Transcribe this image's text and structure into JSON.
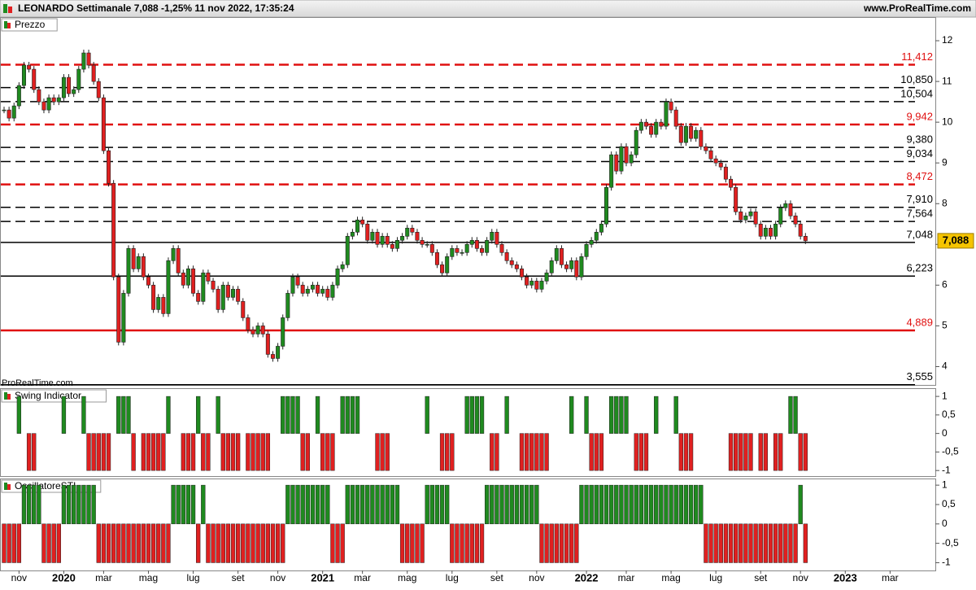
{
  "header": {
    "title": "LEONARDO Settimanale 7,088 -1,25% 11 nov 2022, 17:35:24",
    "site": "www.ProRealTime.com",
    "watermark": "ProRealTime.com"
  },
  "chart_data": [
    {
      "type": "candlestick",
      "title": "Prezzo",
      "values": [
        10.3,
        10.1,
        10.4,
        10.9,
        11.4,
        11.3,
        10.8,
        10.5,
        10.3,
        10.6,
        10.5,
        10.6,
        11.1,
        10.7,
        10.8,
        11.3,
        11.7,
        11.4,
        11.0,
        10.6,
        9.3,
        8.5,
        6.2,
        4.6,
        5.8,
        6.9,
        6.4,
        6.7,
        6.2,
        6.0,
        5.4,
        5.7,
        5.3,
        6.6,
        6.9,
        6.3,
        6.0,
        6.4,
        5.8,
        5.6,
        6.3,
        6.1,
        5.9,
        5.4,
        6.0,
        5.7,
        5.9,
        5.6,
        5.2,
        4.9,
        4.8,
        5.0,
        4.8,
        4.3,
        4.2,
        4.5,
        5.2,
        5.8,
        6.2,
        6.0,
        5.8,
        5.9,
        6.0,
        5.8,
        5.9,
        5.7,
        6.0,
        6.4,
        6.5,
        7.2,
        7.3,
        7.6,
        7.5,
        7.1,
        7.3,
        7.0,
        7.2,
        7.0,
        6.9,
        7.1,
        7.2,
        7.4,
        7.3,
        7.1,
        7.0,
        7.0,
        6.8,
        6.5,
        6.3,
        6.7,
        6.9,
        6.8,
        6.8,
        7.0,
        7.1,
        6.9,
        6.8,
        7.1,
        7.3,
        7.0,
        6.8,
        6.6,
        6.5,
        6.4,
        6.2,
        6.0,
        6.1,
        5.9,
        6.1,
        6.3,
        6.6,
        6.9,
        6.5,
        6.4,
        6.6,
        6.2,
        6.7,
        7.0,
        7.1,
        7.3,
        7.5,
        8.4,
        9.2,
        8.8,
        9.4,
        9.0,
        9.2,
        9.8,
        10.0,
        9.9,
        9.7,
        10.0,
        9.9,
        10.5,
        10.3,
        9.9,
        9.5,
        9.9,
        9.6,
        9.8,
        9.4,
        9.3,
        9.1,
        9.0,
        8.9,
        8.6,
        8.4,
        7.8,
        7.6,
        7.7,
        7.8,
        7.5,
        7.2,
        7.4,
        7.2,
        7.5,
        7.9,
        8.0,
        7.7,
        7.5,
        7.2,
        7.088
      ],
      "up_color": "#1f8a1f",
      "down_color": "#e02020",
      "ylim": [
        3.55,
        12.56
      ],
      "yticks": [
        4,
        5,
        6,
        7,
        8,
        9,
        10,
        11,
        12
      ],
      "levels": [
        {
          "value": 11.412,
          "label": "11,412",
          "color": "#e01010",
          "style": "dashed"
        },
        {
          "value": 10.85,
          "label": "10,850",
          "color": "#000000",
          "style": "dashed"
        },
        {
          "value": 10.504,
          "label": "10,504",
          "color": "#000000",
          "style": "dashed"
        },
        {
          "value": 9.942,
          "label": "9,942",
          "color": "#e01010",
          "style": "dashed"
        },
        {
          "value": 9.38,
          "label": "9,380",
          "color": "#000000",
          "style": "dashed"
        },
        {
          "value": 9.034,
          "label": "9,034",
          "color": "#000000",
          "style": "dashed"
        },
        {
          "value": 8.472,
          "label": "8,472",
          "color": "#e01010",
          "style": "dashed"
        },
        {
          "value": 7.91,
          "label": "7,910",
          "color": "#000000",
          "style": "dashed"
        },
        {
          "value": 7.564,
          "label": "7,564",
          "color": "#000000",
          "style": "dashed"
        },
        {
          "value": 7.048,
          "label": "7,048",
          "color": "#000000",
          "style": "solid"
        },
        {
          "value": 6.223,
          "label": "6,223",
          "color": "#000000",
          "style": "solid"
        },
        {
          "value": 4.889,
          "label": "4,889",
          "color": "#e01010",
          "style": "solid"
        },
        {
          "value": 3.555,
          "label": "3,555",
          "color": "#000000",
          "style": "solid"
        }
      ],
      "last_price": {
        "value": 7.088,
        "label": "7,088"
      }
    },
    {
      "type": "bar",
      "title": "Swing Indicator",
      "up_color": "#1f8a1f",
      "down_color": "#e02020",
      "values": [
        0,
        0,
        0,
        1,
        0,
        -1,
        -1,
        0,
        0,
        0,
        0,
        0,
        1,
        0,
        0,
        0,
        1,
        -1,
        -1,
        -1,
        -1,
        -1,
        0,
        1,
        1,
        1,
        -1,
        0,
        -1,
        -1,
        -1,
        -1,
        -1,
        1,
        0,
        0,
        -1,
        -1,
        -1,
        1,
        -1,
        -1,
        0,
        1,
        -1,
        -1,
        -1,
        -1,
        0,
        -1,
        -1,
        -1,
        -1,
        -1,
        0,
        0,
        1,
        1,
        1,
        1,
        -1,
        -1,
        0,
        1,
        -1,
        -1,
        -1,
        0,
        1,
        1,
        1,
        1,
        0,
        0,
        0,
        -1,
        -1,
        -1,
        0,
        0,
        0,
        0,
        0,
        0,
        0,
        1,
        0,
        0,
        -1,
        -1,
        -1,
        0,
        0,
        1,
        1,
        1,
        1,
        0,
        -1,
        -1,
        0,
        1,
        0,
        0,
        -1,
        -1,
        -1,
        -1,
        -1,
        -1,
        0,
        0,
        0,
        0,
        1,
        0,
        0,
        1,
        -1,
        -1,
        -1,
        0,
        1,
        1,
        1,
        1,
        0,
        -1,
        -1,
        -1,
        0,
        1,
        0,
        0,
        0,
        1,
        -1,
        -1,
        -1,
        0,
        0,
        0,
        0,
        0,
        0,
        0,
        -1,
        -1,
        -1,
        -1,
        -1,
        0,
        -1,
        -1,
        0,
        -1,
        -1,
        0,
        1,
        1,
        -1,
        -1
      ],
      "ylim": [
        -1.15,
        1.2
      ],
      "yticks": [
        1,
        {
          "value": 0.5,
          "label": "0,5"
        },
        0,
        {
          "value": -0.5,
          "label": "-0,5"
        },
        -1
      ]
    },
    {
      "type": "bar",
      "title": "OscillatoreSTI",
      "up_color": "#1f8a1f",
      "down_color": "#e02020",
      "values": [
        -1,
        -1,
        -1,
        -1,
        1,
        1,
        1,
        1,
        -1,
        -1,
        -1,
        -1,
        1,
        1,
        1,
        1,
        1,
        1,
        1,
        -1,
        -1,
        -1,
        -1,
        -1,
        -1,
        -1,
        -1,
        -1,
        -1,
        -1,
        -1,
        -1,
        -1,
        -1,
        1,
        1,
        1,
        1,
        1,
        -1,
        1,
        -1,
        -1,
        -1,
        -1,
        -1,
        -1,
        -1,
        -1,
        -1,
        -1,
        -1,
        -1,
        -1,
        -1,
        -1,
        -1,
        1,
        1,
        1,
        1,
        1,
        1,
        1,
        1,
        1,
        -1,
        -1,
        -1,
        1,
        1,
        1,
        1,
        1,
        1,
        1,
        1,
        1,
        1,
        1,
        -1,
        -1,
        -1,
        -1,
        -1,
        1,
        1,
        1,
        1,
        1,
        -1,
        -1,
        -1,
        -1,
        -1,
        -1,
        -1,
        1,
        1,
        1,
        1,
        1,
        1,
        1,
        1,
        1,
        1,
        1,
        -1,
        -1,
        -1,
        -1,
        -1,
        -1,
        -1,
        -1,
        1,
        1,
        1,
        1,
        1,
        1,
        1,
        1,
        1,
        1,
        1,
        1,
        1,
        1,
        1,
        1,
        1,
        1,
        1,
        1,
        1,
        1,
        1,
        1,
        1,
        -1,
        -1,
        -1,
        -1,
        -1,
        -1,
        -1,
        -1,
        -1,
        -1,
        -1,
        -1,
        -1,
        -1,
        -1,
        -1,
        -1,
        -1,
        -1,
        1,
        -1
      ],
      "ylim": [
        -1.2,
        1.15
      ],
      "yticks": [
        1,
        {
          "value": 0.5,
          "label": "0,5"
        },
        0,
        {
          "value": -0.5,
          "label": "-0,5"
        },
        -1
      ],
      "xticks": [
        {
          "value": 3,
          "label": "nov"
        },
        {
          "value": 12,
          "label": "2020"
        },
        {
          "value": 20,
          "label": "mar"
        },
        {
          "value": 29,
          "label": "mag"
        },
        {
          "value": 38,
          "label": "lug"
        },
        {
          "value": 47,
          "label": "set"
        },
        {
          "value": 55,
          "label": "nov"
        },
        {
          "value": 64,
          "label": "2021"
        },
        {
          "value": 72,
          "label": "mar"
        },
        {
          "value": 81,
          "label": "mag"
        },
        {
          "value": 90,
          "label": "lug"
        },
        {
          "value": 99,
          "label": "set"
        },
        {
          "value": 107,
          "label": "nov"
        },
        {
          "value": 117,
          "label": "2022"
        },
        {
          "value": 125,
          "label": "mar"
        },
        {
          "value": 134,
          "label": "mag"
        },
        {
          "value": 143,
          "label": "lug"
        },
        {
          "value": 152,
          "label": "set"
        },
        {
          "value": 160,
          "label": "nov"
        },
        {
          "value": 169,
          "label": "2023"
        },
        {
          "value": 178,
          "label": "mar"
        }
      ]
    }
  ]
}
